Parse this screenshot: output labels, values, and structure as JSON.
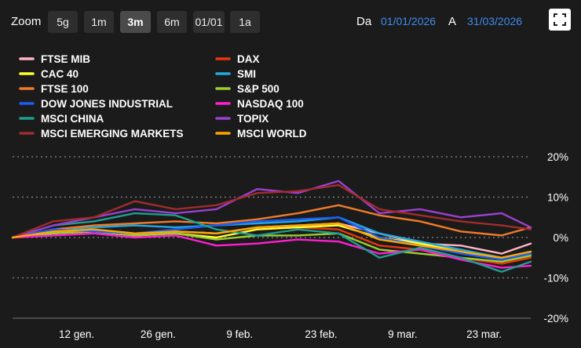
{
  "toolbar": {
    "zoom_label": "Zoom",
    "zoom_buttons": [
      "5g",
      "1m",
      "3m",
      "6m",
      "01/01",
      "1a"
    ],
    "active_zoom": "3m",
    "from_label": "Da",
    "from_date": "01/01/2026",
    "to_label": "A",
    "to_date": "31/03/2026",
    "fullscreen_icon": "fullscreen-icon"
  },
  "colors": {
    "background": "#1b1b1b",
    "date_link": "#3f8cf0",
    "gridline": "#8a8a8a"
  },
  "chart_data": {
    "type": "line",
    "x_axis": {
      "type": "date",
      "start": "2026-01-01",
      "end": "2026-03-31",
      "tick_labels": [
        "12 gen.",
        "26 gen.",
        "9 feb.",
        "23 feb.",
        "9 mar.",
        "23 mar."
      ],
      "tick_dates": [
        "2026-01-12",
        "2026-01-26",
        "2026-02-09",
        "2026-02-23",
        "2026-03-09",
        "2026-03-23"
      ]
    },
    "y_axis": {
      "unit": "%",
      "position": "right",
      "ylim": [
        -20,
        20
      ],
      "tick_labels": [
        "20%",
        "10%",
        "0%",
        "-10%",
        "-20%"
      ],
      "ticks": [
        20,
        10,
        0,
        -10,
        -20
      ],
      "grid": "dotted"
    },
    "legend_position": "top-left",
    "x": [
      "2026-01-01",
      "2026-01-08",
      "2026-01-15",
      "2026-01-22",
      "2026-01-29",
      "2026-02-05",
      "2026-02-12",
      "2026-02-19",
      "2026-02-26",
      "2026-03-05",
      "2026-03-12",
      "2026-03-19",
      "2026-03-26",
      "2026-03-31"
    ],
    "series": [
      {
        "name": "FTSE MIB",
        "color": "#ffb6c1",
        "values": [
          0,
          1.5,
          2,
          1,
          1.5,
          1,
          2.5,
          3,
          3.5,
          1,
          -1.5,
          -2,
          -4,
          -1.5
        ]
      },
      {
        "name": "DAX",
        "color": "#e8360e",
        "values": [
          0,
          1.5,
          2,
          0.5,
          1,
          0,
          2,
          2.5,
          2,
          -2,
          -3,
          -5,
          -6.5,
          -5
        ]
      },
      {
        "name": "CAC 40",
        "color": "#ffff33",
        "values": [
          0,
          1,
          1.5,
          0.5,
          1,
          0,
          2,
          2.5,
          3,
          0,
          -1.5,
          -3.5,
          -5.5,
          -4
        ]
      },
      {
        "name": "SMI",
        "color": "#22a8e0",
        "values": [
          0,
          2,
          2.5,
          3,
          2.5,
          3,
          3.5,
          4,
          5,
          1,
          -1,
          -3,
          -5,
          -3.5
        ]
      },
      {
        "name": "FTSE 100",
        "color": "#f07b2a",
        "values": [
          0,
          2,
          3,
          3.5,
          4,
          3.5,
          4.5,
          6,
          8,
          5.5,
          4,
          1.5,
          0.5,
          2.5
        ]
      },
      {
        "name": "S&P 500",
        "color": "#9acd32",
        "values": [
          0,
          1,
          1.5,
          0.5,
          1,
          -0.5,
          0.5,
          0.5,
          1,
          -3,
          -4,
          -5,
          -6,
          -4.5
        ]
      },
      {
        "name": "DOW JONES INDUSTRIAL",
        "color": "#1a5cf5",
        "values": [
          0,
          2,
          1.5,
          1,
          2,
          3,
          4,
          4.5,
          5,
          0,
          -2,
          -4,
          -5.5,
          -4
        ]
      },
      {
        "name": "NASDAQ 100",
        "color": "#ff1fd2",
        "values": [
          0,
          0.5,
          1,
          0,
          0.5,
          -2,
          -1.5,
          -0.5,
          -1,
          -4,
          -3,
          -5.5,
          -7.5,
          -7
        ]
      },
      {
        "name": "MSCI CHINA",
        "color": "#1f9e8e",
        "values": [
          0,
          3,
          4,
          6,
          5.5,
          2,
          0.5,
          2,
          1,
          -5,
          -2.5,
          -5,
          -8.5,
          -6
        ]
      },
      {
        "name": "TOPIX",
        "color": "#9b40d0",
        "values": [
          0,
          3,
          5,
          7,
          6,
          7,
          12,
          11,
          14,
          6,
          7,
          5,
          6,
          2.5
        ]
      },
      {
        "name": "MSCI EMERGING MARKETS",
        "color": "#a02c2c",
        "values": [
          0,
          4,
          5,
          9,
          7,
          8,
          11,
          11.5,
          13,
          7,
          5.5,
          4,
          3,
          2
        ]
      },
      {
        "name": "MSCI WORLD",
        "color": "#ffa500",
        "values": [
          0,
          1.5,
          2,
          1,
          1.5,
          1,
          2.5,
          3,
          3.5,
          -0.5,
          -2,
          -3.5,
          -5,
          -3.5
        ]
      }
    ]
  }
}
